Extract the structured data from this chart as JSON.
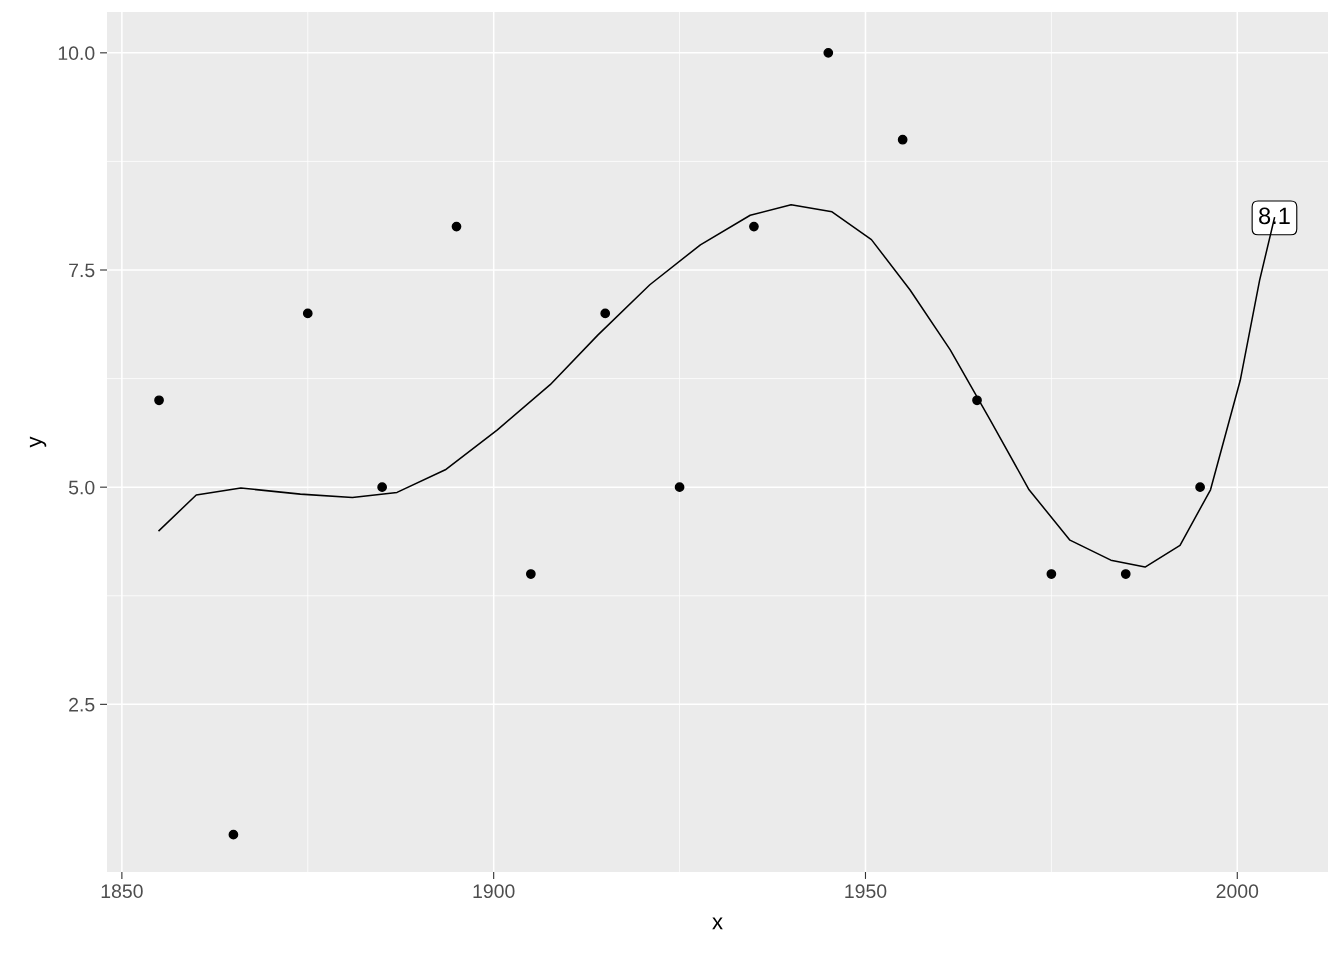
{
  "chart_data": {
    "type": "scatter",
    "xlabel": "x",
    "ylabel": "y",
    "xlim": [
      1848,
      2012.2
    ],
    "ylim": [
      0.57,
      10.47
    ],
    "xticks": [
      1850,
      1900,
      1950,
      2000
    ],
    "yticks": [
      {
        "value": 2.5,
        "label": "2.5"
      },
      {
        "value": 5,
        "label": "5.0"
      },
      {
        "value": 7.5,
        "label": "7.5"
      },
      {
        "value": 10,
        "label": "10.0"
      }
    ],
    "grid": true,
    "series": [
      {
        "color": "#000000",
        "marker": "circle",
        "x": [
          1855,
          1865,
          1875,
          1885,
          1895,
          1905,
          1915,
          1925,
          1935,
          1945,
          1955,
          1965,
          1975,
          1985,
          1995
        ],
        "values": [
          6,
          1,
          7,
          5,
          8,
          4,
          7,
          5,
          8,
          10,
          9,
          6,
          4,
          4,
          5
        ]
      },
      {
        "type": "line",
        "color": "#000000",
        "line_style": "solid",
        "x": [
          1855,
          1860,
          1866,
          1874,
          1881,
          1887,
          1893.5,
          1900.5,
          1907.6,
          1914,
          1921,
          1927.8,
          1934.5,
          1940,
          1945.5,
          1950.8,
          1956,
          1961.4,
          1966.8,
          1972,
          1977.5,
          1983,
          1987.6,
          1992.3,
          1996.4,
          2000.4,
          2003,
          2005
        ],
        "values": [
          4.5,
          4.91,
          4.99,
          4.92,
          4.88,
          4.94,
          5.2,
          5.66,
          6.18,
          6.75,
          7.33,
          7.79,
          8.13,
          8.25,
          8.17,
          7.85,
          7.27,
          6.58,
          5.77,
          4.97,
          4.39,
          4.16,
          4.08,
          4.33,
          4.97,
          6.23,
          7.38,
          8.1
        ]
      }
    ],
    "annotations": [
      {
        "text": "8.1",
        "x": 2005,
        "y": 8.1
      }
    ]
  }
}
